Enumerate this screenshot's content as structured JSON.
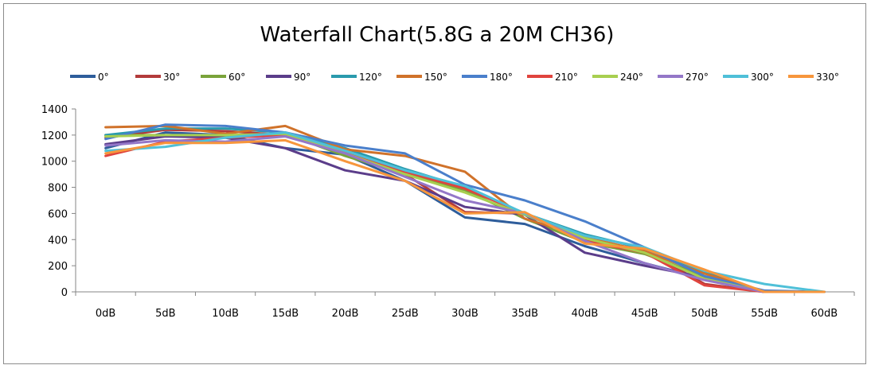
{
  "chart_data": {
    "type": "line",
    "title": "Waterfall Chart(5.8G a 20M CH36)",
    "xlabel": "",
    "ylabel": "",
    "categories": [
      "0dB",
      "5dB",
      "10dB",
      "15dB",
      "20dB",
      "25dB",
      "30dB",
      "35dB",
      "40dB",
      "45dB",
      "50dB",
      "55dB",
      "60dB"
    ],
    "ylim": [
      0,
      1400
    ],
    "yticks": [
      0,
      200,
      400,
      600,
      800,
      1000,
      1200,
      1400
    ],
    "grid": false,
    "legend_position": "top",
    "series": [
      {
        "name": "0°",
        "color": "#2e5d9b",
        "values": [
          1100,
          1220,
          1200,
          1100,
          1050,
          850,
          570,
          520,
          350,
          220,
          100,
          0,
          0
        ]
      },
      {
        "name": "30°",
        "color": "#b33b3b",
        "values": [
          1180,
          1240,
          1230,
          1200,
          1080,
          900,
          610,
          600,
          400,
          320,
          60,
          0,
          0
        ]
      },
      {
        "name": "60°",
        "color": "#7aa33a",
        "values": [
          1200,
          1200,
          1190,
          1210,
          1040,
          900,
          780,
          560,
          380,
          290,
          120,
          0,
          0
        ]
      },
      {
        "name": "90°",
        "color": "#5b3d8a",
        "values": [
          1130,
          1190,
          1180,
          1100,
          930,
          850,
          650,
          590,
          300,
          200,
          110,
          0,
          0
        ]
      },
      {
        "name": "120°",
        "color": "#2a9aad",
        "values": [
          1200,
          1250,
          1250,
          1220,
          1100,
          940,
          800,
          600,
          440,
          330,
          150,
          0,
          0
        ]
      },
      {
        "name": "150°",
        "color": "#d0722a",
        "values": [
          1260,
          1270,
          1210,
          1270,
          1090,
          1040,
          920,
          560,
          420,
          310,
          140,
          0,
          0
        ]
      },
      {
        "name": "180°",
        "color": "#4a7fcb",
        "values": [
          1170,
          1280,
          1270,
          1220,
          1120,
          1060,
          820,
          700,
          540,
          340,
          120,
          10,
          0
        ]
      },
      {
        "name": "210°",
        "color": "#e0443e",
        "values": [
          1040,
          1150,
          1180,
          1200,
          1070,
          920,
          790,
          600,
          390,
          300,
          50,
          0,
          0
        ]
      },
      {
        "name": "240°",
        "color": "#a8cf50",
        "values": [
          1190,
          1200,
          1200,
          1210,
          1060,
          900,
          760,
          590,
          410,
          300,
          100,
          0,
          0
        ]
      },
      {
        "name": "270°",
        "color": "#9477c8",
        "values": [
          1120,
          1160,
          1150,
          1190,
          1060,
          880,
          700,
          600,
          390,
          220,
          90,
          0,
          0
        ]
      },
      {
        "name": "300°",
        "color": "#4fc0d8",
        "values": [
          1080,
          1110,
          1180,
          1220,
          1080,
          930,
          810,
          600,
          430,
          340,
          160,
          60,
          0
        ]
      },
      {
        "name": "330°",
        "color": "#f7963c",
        "values": [
          1060,
          1140,
          1140,
          1160,
          1000,
          850,
          600,
          610,
          370,
          330,
          170,
          0,
          0
        ]
      }
    ]
  }
}
